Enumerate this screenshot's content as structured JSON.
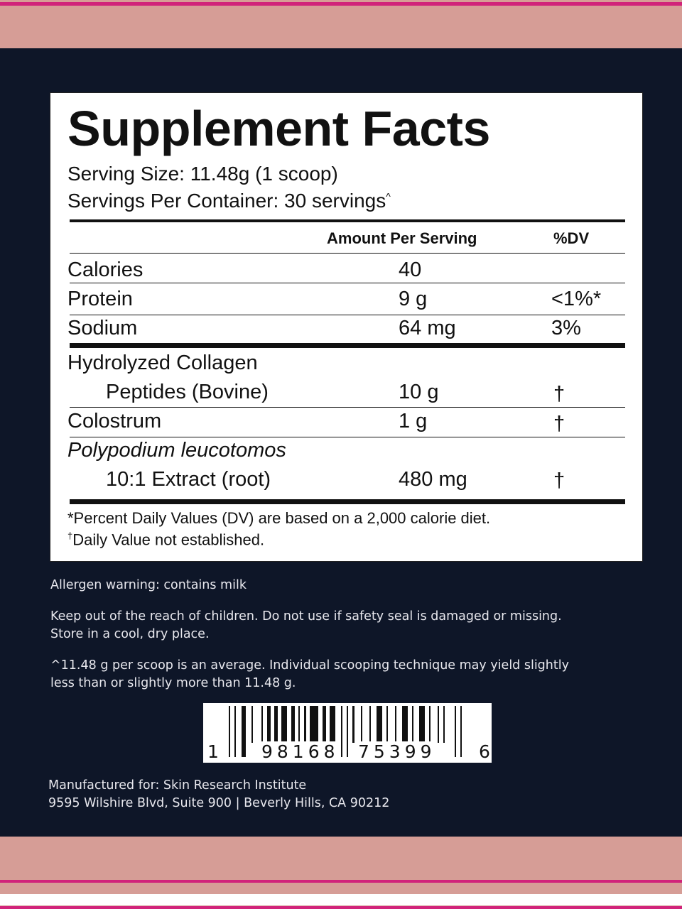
{
  "colors": {
    "navy": "#0e1628",
    "pink": "#d69d96",
    "magenta": "#d1237a"
  },
  "title": "Supplement Facts",
  "serving_size": "Serving Size: 11.48g (1 scoop)",
  "servings_per_container": "Servings Per Container: 30 servings",
  "servings_mark": "^",
  "headers": {
    "amount": "Amount Per Serving",
    "dv": "%DV"
  },
  "rows": [
    {
      "name": "Calories",
      "amount": "40",
      "dv": ""
    },
    {
      "name": "Protein",
      "amount": "9 g",
      "dv": "<1%*"
    },
    {
      "name": "Sodium",
      "amount": "64 mg",
      "dv": "3%"
    },
    {
      "name": "Hydrolyzed Collagen",
      "name2": "Peptides (Bovine)",
      "amount": "10 g",
      "dv": "†"
    },
    {
      "name": "Colostrum",
      "amount": "1 g",
      "dv": "†"
    },
    {
      "name": "Polypodium leucotomos",
      "name2": "10:1 Extract (root)",
      "amount": "480 mg",
      "dv": "†"
    }
  ],
  "footnotes": {
    "dv": "*Percent Daily Values (DV) are based on a 2,000 calorie diet.",
    "dagger": "†",
    "na": "Daily Value not established."
  },
  "allergen": "Allergen warning: contains milk",
  "warning1": "Keep out of the reach of children. Do not use if safety seal is damaged or missing.",
  "warning2": "Store in a cool, dry place.",
  "scoop_note1": "^11.48 g per scoop is an average. Individual scooping technique may yield slightly",
  "scoop_note2": "less than or slightly more than 11.48 g.",
  "barcode": {
    "first": "1",
    "left": "98168",
    "right": "75399",
    "last": "6"
  },
  "manufacturer1": "Manufactured for: Skin Research Institute",
  "manufacturer2": "9595 Wilshire Blvd, Suite 900 | Beverly Hills, CA 90212"
}
